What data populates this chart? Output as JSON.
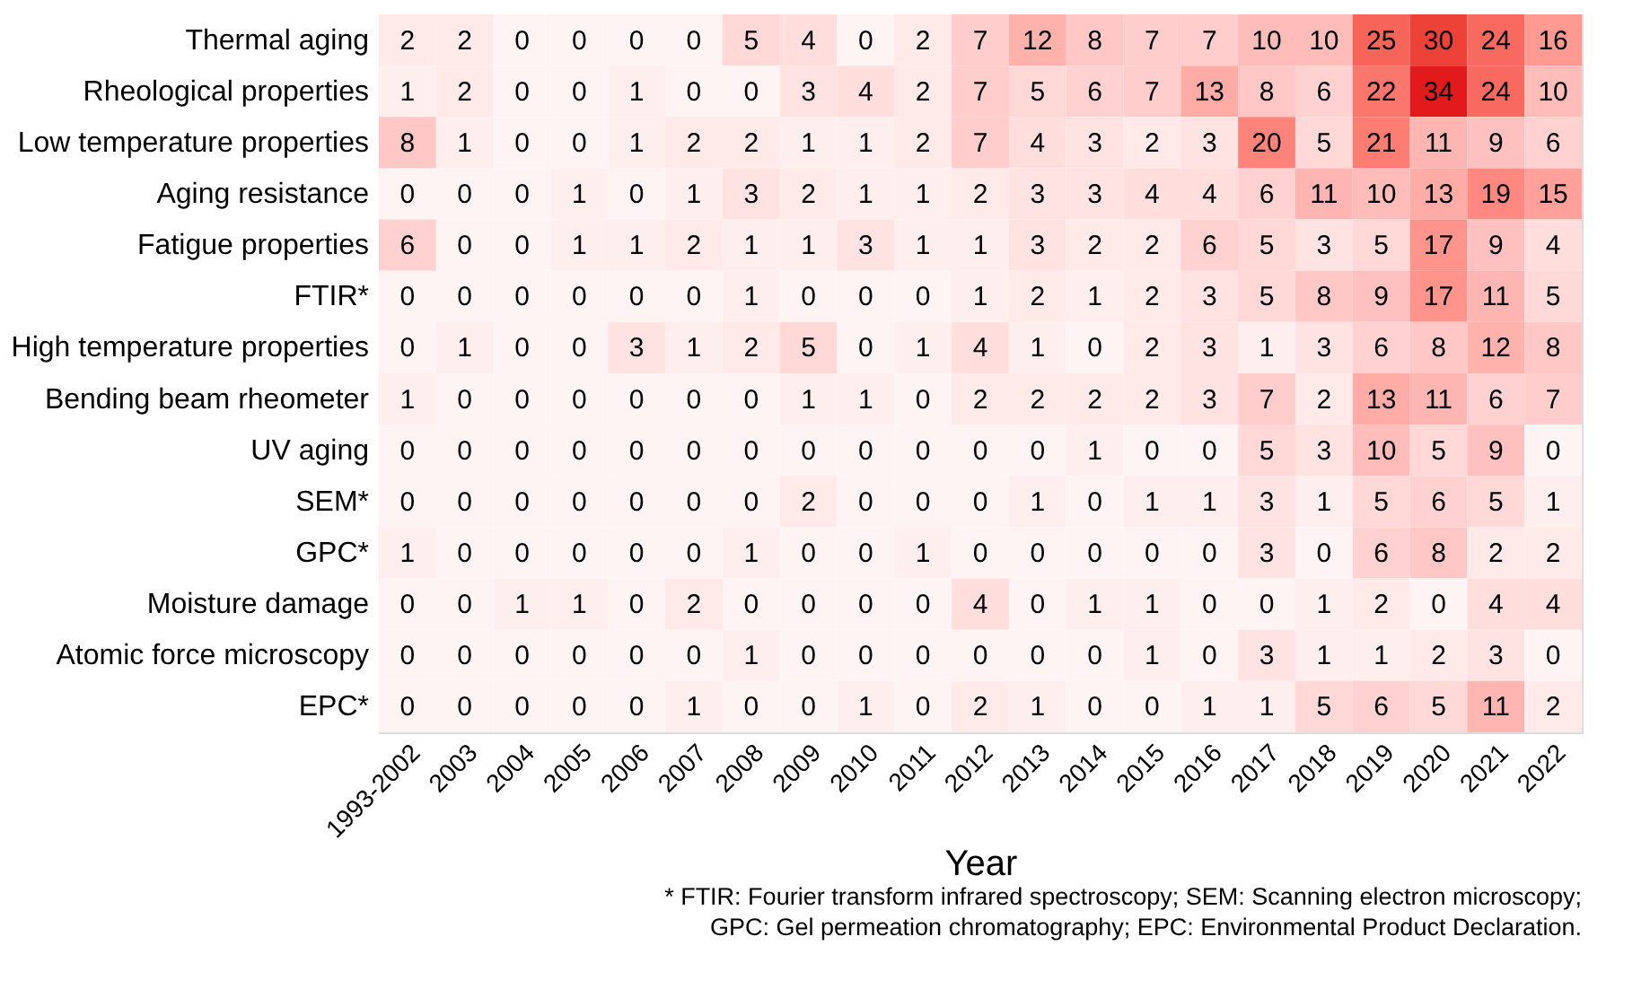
{
  "chart_data": {
    "type": "heatmap",
    "xlabel": "Year",
    "categories": [
      "1993-2002",
      "2003",
      "2004",
      "2005",
      "2006",
      "2007",
      "2008",
      "2009",
      "2010",
      "2011",
      "2012",
      "2013",
      "2014",
      "2015",
      "2016",
      "2017",
      "2018",
      "2019",
      "2020",
      "2021",
      "2022"
    ],
    "y_categories": [
      "Thermal aging",
      "Rheological properties",
      "Low temperature properties",
      "Aging resistance",
      "Fatigue properties",
      "FTIR*",
      "High temperature properties",
      "Bending beam rheometer",
      "UV aging",
      "SEM*",
      "GPC*",
      "Moisture damage",
      "Atomic force microscopy",
      "EPC*"
    ],
    "cells": [
      [
        2,
        2,
        0,
        0,
        0,
        0,
        5,
        4,
        0,
        2,
        7,
        12,
        8,
        7,
        7,
        10,
        10,
        25,
        30,
        24,
        16
      ],
      [
        1,
        2,
        0,
        0,
        1,
        0,
        0,
        3,
        4,
        2,
        7,
        5,
        6,
        7,
        13,
        8,
        6,
        22,
        34,
        24,
        10
      ],
      [
        8,
        1,
        0,
        0,
        1,
        2,
        2,
        1,
        1,
        2,
        7,
        4,
        3,
        2,
        3,
        20,
        5,
        21,
        11,
        9,
        6
      ],
      [
        0,
        0,
        0,
        1,
        0,
        1,
        3,
        2,
        1,
        1,
        2,
        3,
        3,
        4,
        4,
        6,
        11,
        10,
        13,
        19,
        15
      ],
      [
        6,
        0,
        0,
        1,
        1,
        2,
        1,
        1,
        3,
        1,
        1,
        3,
        2,
        2,
        6,
        5,
        3,
        5,
        17,
        9,
        4
      ],
      [
        0,
        0,
        0,
        0,
        0,
        0,
        1,
        0,
        0,
        0,
        1,
        2,
        1,
        2,
        3,
        5,
        8,
        9,
        17,
        11,
        5
      ],
      [
        0,
        1,
        0,
        0,
        3,
        1,
        2,
        5,
        0,
        1,
        4,
        1,
        0,
        2,
        3,
        1,
        3,
        6,
        8,
        12,
        8
      ],
      [
        1,
        0,
        0,
        0,
        0,
        0,
        0,
        1,
        1,
        0,
        2,
        2,
        2,
        2,
        3,
        7,
        2,
        13,
        11,
        6,
        7
      ],
      [
        0,
        0,
        0,
        0,
        0,
        0,
        0,
        0,
        0,
        0,
        0,
        0,
        1,
        0,
        0,
        5,
        3,
        10,
        5,
        9,
        0
      ],
      [
        0,
        0,
        0,
        0,
        0,
        0,
        0,
        2,
        0,
        0,
        0,
        1,
        0,
        1,
        1,
        3,
        1,
        5,
        6,
        5,
        1
      ],
      [
        1,
        0,
        0,
        0,
        0,
        0,
        1,
        0,
        0,
        1,
        0,
        0,
        0,
        0,
        0,
        3,
        0,
        6,
        8,
        2,
        2
      ],
      [
        0,
        0,
        1,
        1,
        0,
        2,
        0,
        0,
        0,
        0,
        4,
        0,
        1,
        1,
        0,
        0,
        1,
        2,
        0,
        4,
        4
      ],
      [
        0,
        0,
        0,
        0,
        0,
        0,
        1,
        0,
        0,
        0,
        0,
        0,
        0,
        1,
        0,
        3,
        1,
        1,
        2,
        3,
        0
      ],
      [
        0,
        0,
        0,
        0,
        0,
        1,
        0,
        0,
        1,
        0,
        2,
        1,
        0,
        0,
        1,
        1,
        5,
        6,
        5,
        11,
        2
      ]
    ],
    "data_labels": true,
    "annotations": [
      "* FTIR: Fourier transform infrared spectroscopy; SEM: Scanning electron microscopy;",
      "GPC: Gel permeation chromatography; EPC: Environmental Product Declaration."
    ]
  }
}
